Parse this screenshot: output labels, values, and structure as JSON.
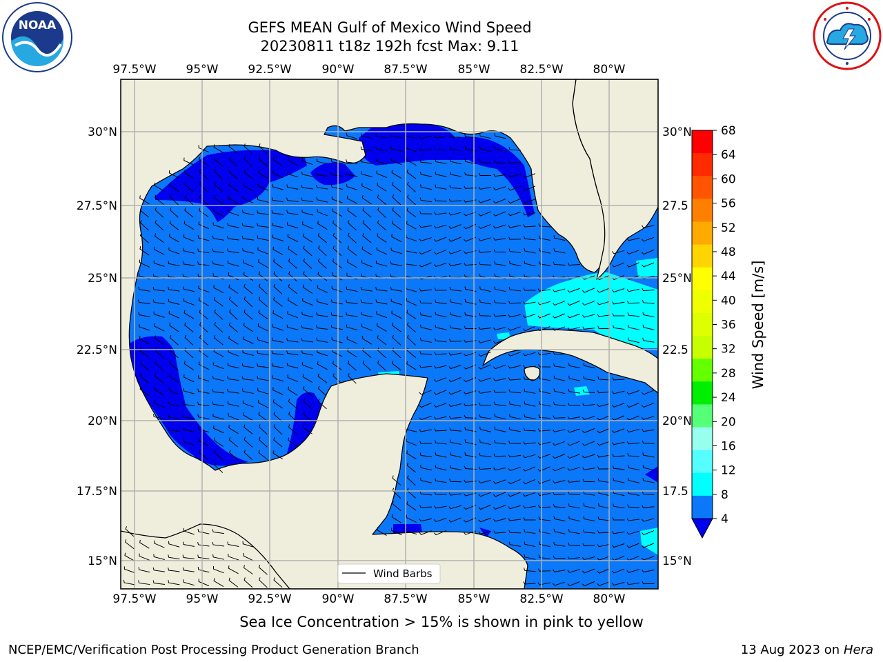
{
  "title_line1": "GEFS MEAN Gulf of Mexico Wind Speed",
  "title_line2": "20230811 t18z 192h fcst   Max: 9.11",
  "map": {
    "lon_ticks_top": [
      "97.5°W",
      "95°W",
      "92.5°W",
      "90°W",
      "87.5°W",
      "85°W",
      "82.5°W",
      "80°W"
    ],
    "lon_ticks_bottom": [
      "97.5°W",
      "95°W",
      "92.5°W",
      "90°W",
      "87.5°W",
      "85°W",
      "82.5°W",
      "80°W"
    ],
    "lat_ticks_left": [
      "30°N",
      "27.5°N",
      "25°N",
      "22.5°N",
      "20°N",
      "17.5°N",
      "15°N"
    ],
    "lat_ticks_right": [
      "30°N",
      "27.5",
      "25°N",
      "22.5",
      "20°N",
      "17.5",
      "15°N"
    ],
    "legend_label": "Wind Barbs",
    "colors": {
      "land": "#efeedd",
      "ocean_low": "#0a78f8",
      "ocean_min": "#0000ee",
      "ocean_high": "#00ffff",
      "grid": "#b0b0b0"
    }
  },
  "colorbar": {
    "label": "Wind Speed [m/s]",
    "ticks": [
      "68",
      "64",
      "60",
      "56",
      "52",
      "48",
      "44",
      "40",
      "36",
      "32",
      "28",
      "24",
      "20",
      "16",
      "12",
      "8",
      "4"
    ],
    "colors": [
      "#ff0000",
      "#ff2a00",
      "#ff5500",
      "#ff8000",
      "#ffaa00",
      "#ffd400",
      "#ffff00",
      "#f0ff00",
      "#ddff00",
      "#c8ff00",
      "#64ff00",
      "#00ee00",
      "#55ff77",
      "#99ffee",
      "#55ffff",
      "#00ffff",
      "#0a78f8"
    ],
    "under_color": "#0000ee"
  },
  "caption": "Sea Ice Concentration > 15% is shown in pink to yellow",
  "footer_left": "NCEP/EMC/Verification Post Processing Product Generation Branch",
  "footer_date": "13 Aug 2023 on",
  "footer_host": "Hera",
  "logos": {
    "left": "noaa-logo",
    "left_text": "NOAA",
    "right": "nws-logo"
  }
}
